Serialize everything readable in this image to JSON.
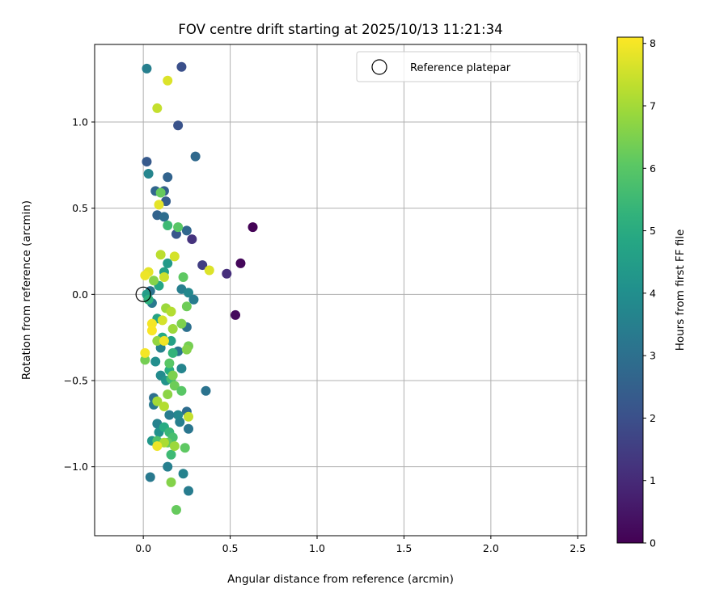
{
  "chart_data": {
    "type": "scatter",
    "title": "FOV centre drift starting at 2025/10/13 11:21:34",
    "xlabel": "Angular distance from reference (arcmin)",
    "ylabel": "Rotation from reference (arcmin)",
    "xlim": [
      -0.28,
      2.55
    ],
    "ylim": [
      -1.4,
      1.45
    ],
    "xticks": [
      0.0,
      0.5,
      1.0,
      1.5,
      2.0,
      2.5
    ],
    "yticks": [
      -1.0,
      -0.5,
      0.0,
      0.5,
      1.0
    ],
    "xtick_labels": [
      "0.0",
      "0.5",
      "1.0",
      "1.5",
      "2.0",
      "2.5"
    ],
    "ytick_labels": [
      "−1.0",
      "−0.5",
      "0.0",
      "0.5",
      "1.0"
    ],
    "grid": true,
    "legend": {
      "position": "top-right",
      "entries": [
        "Reference platepar"
      ]
    },
    "reference_point": {
      "x": 0.0,
      "y": 0.0
    },
    "colorbar": {
      "label": "Hours from first FF file",
      "range": [
        0,
        8.1
      ],
      "ticks": [
        0,
        1,
        2,
        3,
        4,
        5,
        6,
        7,
        8
      ],
      "tick_labels": [
        "0",
        "1",
        "2",
        "3",
        "4",
        "5",
        "6",
        "7",
        "8"
      ],
      "colormap": "viridis"
    },
    "points": [
      {
        "x": 0.63,
        "y": 0.39,
        "t": 0.05
      },
      {
        "x": 0.56,
        "y": 0.18,
        "t": 0.15
      },
      {
        "x": 0.53,
        "y": -0.12,
        "t": 0.2
      },
      {
        "x": 0.48,
        "y": 0.12,
        "t": 1.1
      },
      {
        "x": 0.34,
        "y": 0.17,
        "t": 1.5
      },
      {
        "x": 0.28,
        "y": 0.32,
        "t": 1.2
      },
      {
        "x": 0.22,
        "y": 1.32,
        "t": 2.0
      },
      {
        "x": 0.2,
        "y": 0.98,
        "t": 2.1
      },
      {
        "x": 0.3,
        "y": 0.8,
        "t": 2.8
      },
      {
        "x": 0.02,
        "y": 0.77,
        "t": 2.3
      },
      {
        "x": 0.14,
        "y": 0.68,
        "t": 2.6
      },
      {
        "x": 0.07,
        "y": 0.6,
        "t": 2.7
      },
      {
        "x": 0.12,
        "y": 0.6,
        "t": 2.5
      },
      {
        "x": 0.13,
        "y": 0.54,
        "t": 2.4
      },
      {
        "x": 0.08,
        "y": 0.46,
        "t": 2.6
      },
      {
        "x": 0.12,
        "y": 0.45,
        "t": 2.9
      },
      {
        "x": 0.19,
        "y": 0.35,
        "t": 2.2
      },
      {
        "x": 0.25,
        "y": 0.37,
        "t": 2.7
      },
      {
        "x": 0.02,
        "y": 1.31,
        "t": 3.5
      },
      {
        "x": 0.03,
        "y": 0.7,
        "t": 3.7
      },
      {
        "x": 0.04,
        "y": 0.02,
        "t": 3.1
      },
      {
        "x": 0.05,
        "y": -0.05,
        "t": 3.3
      },
      {
        "x": 0.22,
        "y": 0.03,
        "t": 3.5
      },
      {
        "x": 0.26,
        "y": 0.01,
        "t": 3.8
      },
      {
        "x": 0.29,
        "y": -0.03,
        "t": 3.4
      },
      {
        "x": 0.25,
        "y": -0.19,
        "t": 3.0
      },
      {
        "x": 0.2,
        "y": -0.33,
        "t": 3.2
      },
      {
        "x": 0.36,
        "y": -0.56,
        "t": 3.1
      },
      {
        "x": 0.22,
        "y": -0.43,
        "t": 3.7
      },
      {
        "x": 0.1,
        "y": -0.31,
        "t": 3.6
      },
      {
        "x": 0.06,
        "y": -0.6,
        "t": 3.0
      },
      {
        "x": 0.06,
        "y": -0.64,
        "t": 3.3
      },
      {
        "x": 0.25,
        "y": -0.68,
        "t": 2.9
      },
      {
        "x": 0.26,
        "y": -0.78,
        "t": 3.2
      },
      {
        "x": 0.21,
        "y": -0.74,
        "t": 3.5
      },
      {
        "x": 0.2,
        "y": -0.7,
        "t": 3.8
      },
      {
        "x": 0.15,
        "y": -0.7,
        "t": 3.4
      },
      {
        "x": 0.08,
        "y": -0.75,
        "t": 3.6
      },
      {
        "x": 0.09,
        "y": -0.8,
        "t": 4.1
      },
      {
        "x": 0.05,
        "y": -0.85,
        "t": 4.3
      },
      {
        "x": 0.14,
        "y": -1.0,
        "t": 3.5
      },
      {
        "x": 0.04,
        "y": -1.06,
        "t": 3.3
      },
      {
        "x": 0.23,
        "y": -1.04,
        "t": 3.6
      },
      {
        "x": 0.26,
        "y": -1.14,
        "t": 3.4
      },
      {
        "x": 0.1,
        "y": -0.47,
        "t": 3.9
      },
      {
        "x": 0.13,
        "y": -0.5,
        "t": 4.2
      },
      {
        "x": 0.07,
        "y": -0.39,
        "t": 4.0
      },
      {
        "x": 0.14,
        "y": 0.18,
        "t": 4.4
      },
      {
        "x": 0.12,
        "y": 0.13,
        "t": 4.6
      },
      {
        "x": 0.09,
        "y": 0.05,
        "t": 4.8
      },
      {
        "x": 0.02,
        "y": 0.0,
        "t": 4.5
      },
      {
        "x": 0.03,
        "y": -0.03,
        "t": 5.2
      },
      {
        "x": 0.08,
        "y": -0.14,
        "t": 4.7
      },
      {
        "x": 0.11,
        "y": -0.25,
        "t": 5.0
      },
      {
        "x": 0.16,
        "y": -0.27,
        "t": 4.6
      },
      {
        "x": 0.17,
        "y": -0.34,
        "t": 5.3
      },
      {
        "x": 0.15,
        "y": -0.44,
        "t": 5.1
      },
      {
        "x": 0.16,
        "y": -0.49,
        "t": 5.6
      },
      {
        "x": 0.12,
        "y": -0.77,
        "t": 5.0
      },
      {
        "x": 0.15,
        "y": -0.8,
        "t": 5.4
      },
      {
        "x": 0.17,
        "y": -0.83,
        "t": 5.7
      },
      {
        "x": 0.16,
        "y": -0.93,
        "t": 5.5
      },
      {
        "x": 0.08,
        "y": -0.85,
        "t": 5.8
      },
      {
        "x": 0.15,
        "y": -0.4,
        "t": 6.0
      },
      {
        "x": 0.14,
        "y": 0.4,
        "t": 5.5
      },
      {
        "x": 0.2,
        "y": 0.39,
        "t": 6.0
      },
      {
        "x": 0.1,
        "y": 0.59,
        "t": 6.2
      },
      {
        "x": 0.23,
        "y": 0.1,
        "t": 6.1
      },
      {
        "x": 0.25,
        "y": -0.07,
        "t": 6.3
      },
      {
        "x": 0.22,
        "y": -0.17,
        "t": 6.5
      },
      {
        "x": 0.26,
        "y": -0.3,
        "t": 6.4
      },
      {
        "x": 0.25,
        "y": -0.32,
        "t": 6.6
      },
      {
        "x": 0.18,
        "y": -0.53,
        "t": 6.3
      },
      {
        "x": 0.22,
        "y": -0.56,
        "t": 6.0
      },
      {
        "x": 0.17,
        "y": -0.47,
        "t": 6.5
      },
      {
        "x": 0.14,
        "y": -0.58,
        "t": 6.7
      },
      {
        "x": 0.14,
        "y": -0.86,
        "t": 6.2
      },
      {
        "x": 0.24,
        "y": -0.89,
        "t": 6.1
      },
      {
        "x": 0.16,
        "y": -1.09,
        "t": 6.6
      },
      {
        "x": 0.19,
        "y": -1.25,
        "t": 6.2
      },
      {
        "x": 0.01,
        "y": -0.38,
        "t": 6.4
      },
      {
        "x": 0.08,
        "y": -0.27,
        "t": 6.8
      },
      {
        "x": 0.13,
        "y": -0.08,
        "t": 6.9
      },
      {
        "x": 0.06,
        "y": 0.08,
        "t": 6.6
      },
      {
        "x": 0.17,
        "y": -0.2,
        "t": 6.9
      },
      {
        "x": 0.08,
        "y": -0.62,
        "t": 7.0
      },
      {
        "x": 0.12,
        "y": -0.65,
        "t": 7.2
      },
      {
        "x": 0.26,
        "y": -0.71,
        "t": 7.4
      },
      {
        "x": 0.12,
        "y": -0.86,
        "t": 7.1
      },
      {
        "x": 0.18,
        "y": -0.88,
        "t": 6.9
      },
      {
        "x": 0.1,
        "y": 0.23,
        "t": 7.3
      },
      {
        "x": 0.18,
        "y": 0.22,
        "t": 7.6
      },
      {
        "x": 0.12,
        "y": 0.1,
        "t": 7.5
      },
      {
        "x": 0.08,
        "y": 1.08,
        "t": 7.4
      },
      {
        "x": 0.14,
        "y": 1.24,
        "t": 7.7
      },
      {
        "x": 0.09,
        "y": 0.52,
        "t": 7.8
      },
      {
        "x": 0.38,
        "y": 0.14,
        "t": 7.7
      },
      {
        "x": 0.03,
        "y": 0.13,
        "t": 7.8
      },
      {
        "x": 0.01,
        "y": 0.11,
        "t": 7.9
      },
      {
        "x": 0.05,
        "y": -0.17,
        "t": 8.0
      },
      {
        "x": 0.05,
        "y": -0.21,
        "t": 8.05
      },
      {
        "x": 0.12,
        "y": -0.27,
        "t": 7.95
      },
      {
        "x": 0.01,
        "y": -0.34,
        "t": 8.0
      },
      {
        "x": 0.08,
        "y": -0.88,
        "t": 7.9
      },
      {
        "x": 0.11,
        "y": -0.15,
        "t": 7.6
      },
      {
        "x": 0.16,
        "y": -0.1,
        "t": 7.2
      }
    ]
  }
}
